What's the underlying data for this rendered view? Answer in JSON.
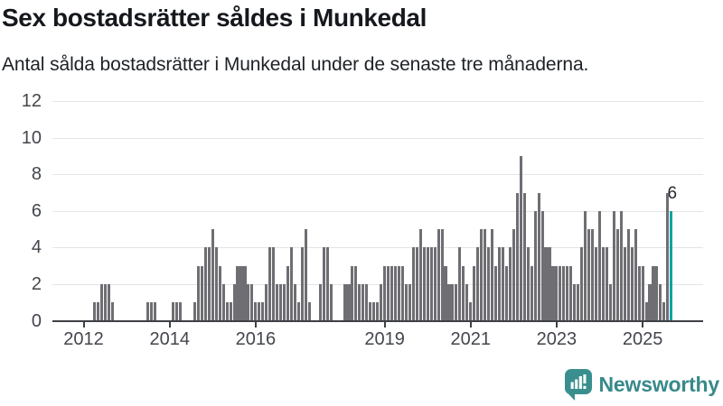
{
  "header": {
    "title": "Sex bostadsrätter såldes i Munkedal",
    "subtitle": "Antal sålda bostadsrätter i Munkedal under de senaste tre månaderna."
  },
  "chart_data": {
    "type": "bar",
    "title": "Sex bostadsrätter såldes i Munkedal",
    "start_month": "2012-01",
    "end_month": "2025-09",
    "values": [
      0,
      0,
      0,
      1,
      1,
      2,
      2,
      2,
      1,
      0,
      0,
      0,
      0,
      0,
      0,
      0,
      0,
      0,
      1,
      1,
      1,
      0,
      0,
      0,
      0,
      1,
      1,
      1,
      0,
      0,
      0,
      1,
      3,
      3,
      4,
      4,
      5,
      4,
      3,
      2,
      1,
      1,
      2,
      3,
      3,
      3,
      2,
      2,
      1,
      1,
      1,
      2,
      4,
      4,
      2,
      2,
      2,
      3,
      4,
      2,
      1,
      4,
      5,
      1,
      0,
      0,
      2,
      4,
      4,
      2,
      0,
      0,
      0,
      2,
      2,
      3,
      3,
      2,
      2,
      2,
      1,
      1,
      1,
      2,
      3,
      3,
      3,
      3,
      3,
      3,
      2,
      2,
      4,
      4,
      5,
      4,
      4,
      4,
      4,
      5,
      5,
      3,
      2,
      2,
      2,
      4,
      3,
      2,
      1,
      3,
      4,
      5,
      5,
      4,
      5,
      3,
      4,
      4,
      3,
      4,
      5,
      7,
      9,
      7,
      4,
      3,
      6,
      7,
      6,
      4,
      4,
      3,
      3,
      3,
      3,
      3,
      3,
      2,
      2,
      4,
      6,
      5,
      5,
      4,
      6,
      4,
      4,
      2,
      6,
      5,
      6,
      4,
      5,
      4,
      5,
      3,
      3,
      1,
      2,
      3,
      3,
      2,
      1,
      7,
      6
    ],
    "highlight": {
      "index": 164,
      "label": "6"
    },
    "ylim": [
      0,
      12
    ],
    "yticks": [
      "0",
      "2",
      "4",
      "6",
      "8",
      "10",
      "12"
    ],
    "xticks": [
      {
        "label": "2012",
        "month_index": 0
      },
      {
        "label": "2014",
        "month_index": 24
      },
      {
        "label": "2016",
        "month_index": 48
      },
      {
        "label": "2019",
        "month_index": 84
      },
      {
        "label": "2021",
        "month_index": 108
      },
      {
        "label": "2023",
        "month_index": 132
      },
      {
        "label": "2025",
        "month_index": 156
      }
    ],
    "grid": true,
    "legend": "none"
  },
  "colors": {
    "bar": "#6e6e73",
    "highlight": "#0fa3a1",
    "grid": "#e4e4e6",
    "axis": "#3d4045",
    "logo": "#3a8f8e"
  },
  "footer": {
    "brand": "Newsworthy"
  }
}
